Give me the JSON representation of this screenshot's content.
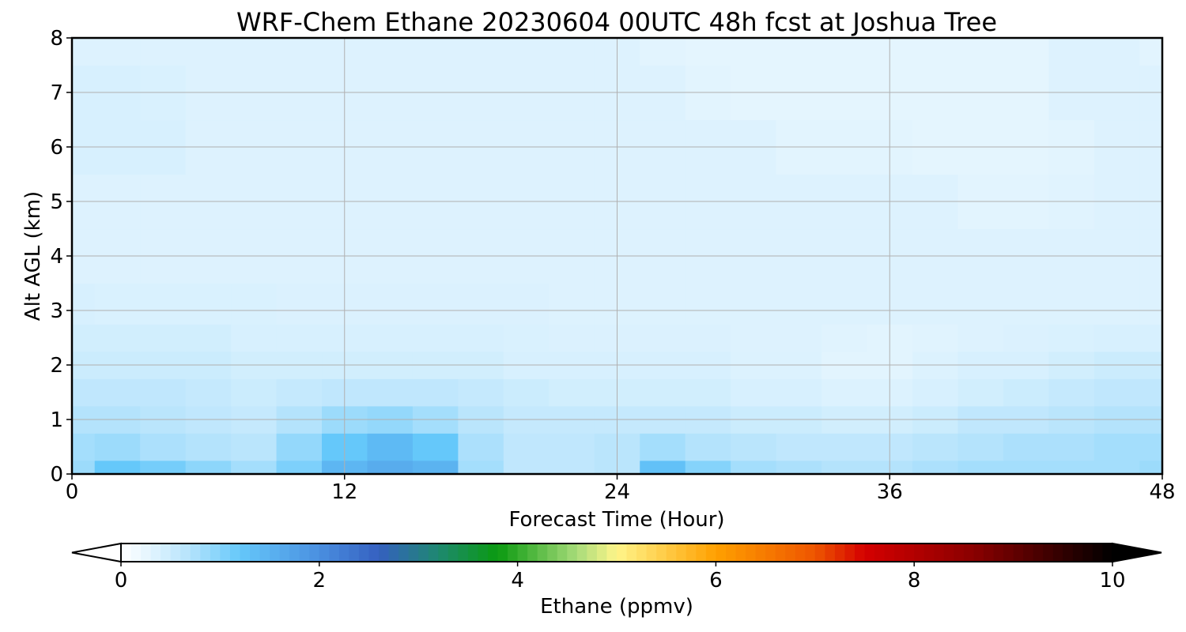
{
  "chart_data": {
    "type": "heatmap",
    "title": "WRF-Chem Ethane  20230604 00UTC 48h fcst at Joshua Tree",
    "xlabel": "Forecast Time (Hour)",
    "ylabel": "Alt AGL (km)",
    "xlim": [
      0,
      48
    ],
    "ylim": [
      0,
      8
    ],
    "x_ticks": [
      0,
      12,
      24,
      36,
      48
    ],
    "y_ticks": [
      0,
      1,
      2,
      3,
      4,
      5,
      6,
      7,
      8
    ],
    "grid": true,
    "x": [
      0,
      2,
      4,
      6,
      8,
      10,
      12,
      14,
      16,
      18,
      20,
      22,
      24,
      26,
      28,
      30,
      32,
      34,
      36,
      38,
      40,
      42,
      44,
      46,
      48
    ],
    "y": [
      0,
      0.5,
      1,
      1.5,
      2,
      2.5,
      3,
      4,
      5,
      6,
      7,
      8
    ],
    "values": [
      [
        0.85,
        1.2,
        1.1,
        0.95,
        0.8,
        1.05,
        1.45,
        1.6,
        1.5,
        0.8,
        0.6,
        0.6,
        0.65,
        1.3,
        1.0,
        0.8,
        0.75,
        0.7,
        0.7,
        0.75,
        0.8,
        0.8,
        0.8,
        0.8,
        0.85
      ],
      [
        0.8,
        0.85,
        0.75,
        0.7,
        0.65,
        0.9,
        1.2,
        1.4,
        1.2,
        0.75,
        0.6,
        0.6,
        0.65,
        0.8,
        0.7,
        0.65,
        0.6,
        0.6,
        0.6,
        0.65,
        0.7,
        0.75,
        0.75,
        0.8,
        0.8
      ],
      [
        0.7,
        0.7,
        0.65,
        0.6,
        0.55,
        0.7,
        0.85,
        0.9,
        0.8,
        0.65,
        0.55,
        0.55,
        0.55,
        0.55,
        0.55,
        0.5,
        0.5,
        0.45,
        0.45,
        0.5,
        0.6,
        0.6,
        0.65,
        0.7,
        0.7
      ],
      [
        0.6,
        0.6,
        0.6,
        0.55,
        0.5,
        0.55,
        0.6,
        0.6,
        0.6,
        0.55,
        0.5,
        0.45,
        0.45,
        0.45,
        0.45,
        0.4,
        0.4,
        0.35,
        0.35,
        0.4,
        0.45,
        0.5,
        0.55,
        0.6,
        0.6
      ],
      [
        0.5,
        0.5,
        0.5,
        0.5,
        0.45,
        0.45,
        0.45,
        0.45,
        0.45,
        0.45,
        0.4,
        0.4,
        0.4,
        0.4,
        0.4,
        0.35,
        0.35,
        0.3,
        0.3,
        0.35,
        0.4,
        0.4,
        0.45,
        0.5,
        0.5
      ],
      [
        0.45,
        0.45,
        0.45,
        0.45,
        0.4,
        0.4,
        0.4,
        0.4,
        0.4,
        0.4,
        0.38,
        0.36,
        0.36,
        0.36,
        0.36,
        0.34,
        0.34,
        0.32,
        0.3,
        0.32,
        0.34,
        0.36,
        0.38,
        0.4,
        0.4
      ],
      [
        0.4,
        0.38,
        0.38,
        0.38,
        0.38,
        0.36,
        0.36,
        0.36,
        0.36,
        0.36,
        0.36,
        0.34,
        0.34,
        0.34,
        0.34,
        0.34,
        0.34,
        0.34,
        0.34,
        0.34,
        0.34,
        0.34,
        0.34,
        0.34,
        0.34
      ],
      [
        0.34,
        0.34,
        0.34,
        0.34,
        0.34,
        0.34,
        0.34,
        0.34,
        0.34,
        0.34,
        0.34,
        0.34,
        0.34,
        0.34,
        0.34,
        0.34,
        0.34,
        0.34,
        0.34,
        0.34,
        0.34,
        0.34,
        0.34,
        0.34,
        0.34
      ],
      [
        0.34,
        0.34,
        0.34,
        0.34,
        0.34,
        0.34,
        0.34,
        0.34,
        0.34,
        0.34,
        0.34,
        0.34,
        0.34,
        0.34,
        0.34,
        0.34,
        0.34,
        0.34,
        0.34,
        0.34,
        0.3,
        0.3,
        0.32,
        0.34,
        0.34
      ],
      [
        0.4,
        0.4,
        0.4,
        0.34,
        0.34,
        0.34,
        0.34,
        0.34,
        0.34,
        0.34,
        0.34,
        0.34,
        0.34,
        0.34,
        0.34,
        0.34,
        0.3,
        0.3,
        0.3,
        0.28,
        0.28,
        0.28,
        0.3,
        0.34,
        0.34
      ],
      [
        0.4,
        0.4,
        0.38,
        0.34,
        0.34,
        0.34,
        0.34,
        0.34,
        0.34,
        0.34,
        0.34,
        0.34,
        0.34,
        0.34,
        0.3,
        0.28,
        0.28,
        0.28,
        0.28,
        0.28,
        0.28,
        0.28,
        0.34,
        0.34,
        0.34
      ],
      [
        0.34,
        0.34,
        0.34,
        0.34,
        0.34,
        0.34,
        0.34,
        0.34,
        0.34,
        0.34,
        0.34,
        0.34,
        0.34,
        0.3,
        0.28,
        0.28,
        0.28,
        0.28,
        0.28,
        0.28,
        0.28,
        0.28,
        0.34,
        0.34,
        0.3
      ]
    ],
    "colorbar": {
      "label": "Ethane  (ppmv)",
      "range": [
        0,
        10
      ],
      "ticks": [
        0,
        2,
        4,
        6,
        8,
        10
      ],
      "extend": "both",
      "levels": 100
    },
    "colors": {
      "lower_extend": "#ffffff",
      "upper_extend": "#000000",
      "stops": [
        {
          "v": 0,
          "c": "#ffffff"
        },
        {
          "v": 0.3,
          "c": "#e2f4fe"
        },
        {
          "v": 0.7,
          "c": "#b4e3fc"
        },
        {
          "v": 1.2,
          "c": "#65c8fa"
        },
        {
          "v": 2.0,
          "c": "#4a8fe0"
        },
        {
          "v": 2.6,
          "c": "#3560c0"
        },
        {
          "v": 3.2,
          "c": "#1e8870"
        },
        {
          "v": 3.8,
          "c": "#0a9a10"
        },
        {
          "v": 4.6,
          "c": "#a8dc7a"
        },
        {
          "v": 5.0,
          "c": "#fff58a"
        },
        {
          "v": 6.0,
          "c": "#ffa000"
        },
        {
          "v": 7.0,
          "c": "#ee5500"
        },
        {
          "v": 7.5,
          "c": "#d40000"
        },
        {
          "v": 8.6,
          "c": "#8a0000"
        },
        {
          "v": 10.0,
          "c": "#000000"
        }
      ]
    }
  }
}
